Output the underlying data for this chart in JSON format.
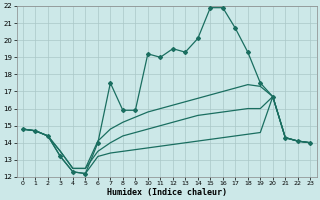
{
  "xlabel": "Humidex (Indice chaleur)",
  "xlim": [
    -0.5,
    23.5
  ],
  "ylim": [
    12,
    22
  ],
  "yticks": [
    12,
    13,
    14,
    15,
    16,
    17,
    18,
    19,
    20,
    21,
    22
  ],
  "xticks": [
    0,
    1,
    2,
    3,
    4,
    5,
    6,
    7,
    8,
    9,
    10,
    11,
    12,
    13,
    14,
    15,
    16,
    17,
    18,
    19,
    20,
    21,
    22,
    23
  ],
  "bg_color": "#cce8e8",
  "grid_color": "#b8d8d8",
  "line_color": "#1a6e60",
  "line1_x": [
    0,
    1,
    2,
    3,
    4,
    5,
    6,
    7,
    8,
    9,
    10,
    11,
    12,
    13,
    14,
    15,
    16,
    17,
    18,
    19,
    20,
    21,
    22,
    23
  ],
  "line1_y": [
    14.8,
    14.7,
    14.4,
    13.2,
    12.3,
    12.2,
    14.0,
    17.5,
    15.9,
    15.9,
    19.2,
    19.0,
    19.5,
    19.3,
    20.1,
    21.9,
    21.9,
    20.7,
    19.3,
    17.5,
    16.7,
    14.3,
    14.1,
    14.0
  ],
  "line2_x": [
    0,
    1,
    2,
    3,
    4,
    5,
    6,
    7,
    8,
    9,
    10,
    11,
    12,
    13,
    14,
    15,
    16,
    17,
    18,
    19,
    20,
    21,
    22,
    23
  ],
  "line2_y": [
    14.8,
    14.7,
    14.4,
    13.5,
    12.5,
    12.5,
    14.1,
    14.8,
    15.2,
    15.5,
    15.8,
    16.0,
    16.2,
    16.4,
    16.6,
    16.8,
    17.0,
    17.2,
    17.4,
    17.3,
    16.7,
    14.3,
    14.1,
    14.0
  ],
  "line3_x": [
    0,
    1,
    2,
    3,
    4,
    5,
    6,
    7,
    8,
    9,
    10,
    11,
    12,
    13,
    14,
    15,
    16,
    17,
    18,
    19,
    20,
    21,
    22,
    23
  ],
  "line3_y": [
    14.8,
    14.7,
    14.4,
    13.5,
    12.5,
    12.5,
    13.5,
    14.0,
    14.4,
    14.6,
    14.8,
    15.0,
    15.2,
    15.4,
    15.6,
    15.7,
    15.8,
    15.9,
    16.0,
    16.0,
    16.7,
    14.3,
    14.1,
    14.0
  ],
  "line4_x": [
    0,
    1,
    2,
    3,
    4,
    5,
    6,
    7,
    8,
    9,
    10,
    11,
    12,
    13,
    14,
    15,
    16,
    17,
    18,
    19,
    20,
    21,
    22,
    23
  ],
  "line4_y": [
    14.8,
    14.7,
    14.4,
    13.2,
    12.3,
    12.2,
    13.2,
    13.4,
    13.5,
    13.6,
    13.7,
    13.8,
    13.9,
    14.0,
    14.1,
    14.2,
    14.3,
    14.4,
    14.5,
    14.6,
    16.7,
    14.3,
    14.1,
    14.0
  ]
}
